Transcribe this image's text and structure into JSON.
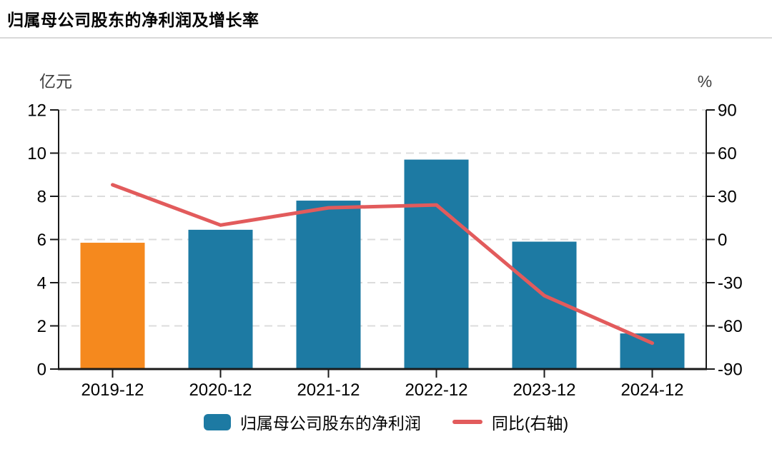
{
  "header": {
    "title": "归属母公司股东的净利润及增长率"
  },
  "chart_data": {
    "type": "bar",
    "subtype": "bar-line-combo",
    "title": "归属母公司股东的净利润及增长率",
    "categories": [
      "2019-12",
      "2020-12",
      "2021-12",
      "2022-12",
      "2023-12",
      "2024-12"
    ],
    "series": [
      {
        "name": "归属母公司股东的净利润",
        "type": "bar",
        "axis": "left",
        "color": "#1d7aa3",
        "point_colors": [
          "#f5891e",
          "#1d7aa3",
          "#1d7aa3",
          "#1d7aa3",
          "#1d7aa3",
          "#1d7aa3"
        ],
        "values": [
          5.85,
          6.45,
          7.8,
          9.7,
          5.9,
          1.65
        ]
      },
      {
        "name": "同比(右轴)",
        "type": "line",
        "axis": "right",
        "color": "#e25b5c",
        "values": [
          38,
          10,
          22,
          24,
          -39,
          -72
        ]
      }
    ],
    "left_axis": {
      "label": "亿元",
      "min": 0,
      "max": 12,
      "ticks": [
        0,
        2,
        4,
        6,
        8,
        10,
        12
      ]
    },
    "right_axis": {
      "label": "%",
      "min": -90,
      "max": 90,
      "ticks": [
        90,
        60,
        30,
        0,
        -30,
        -60,
        -90
      ]
    },
    "grid": {
      "horizontal": true,
      "style": "dashed",
      "color": "#dcdcdc"
    },
    "legend_position": "bottom"
  },
  "colors": {
    "background": "#ffffff",
    "divider": "#d9d9d9",
    "axis": "#1a1a1a",
    "text": "#000000",
    "unit_text": "#404040",
    "bar_default": "#1d7aa3",
    "bar_highlight": "#f5891e",
    "line": "#e25b5c"
  }
}
